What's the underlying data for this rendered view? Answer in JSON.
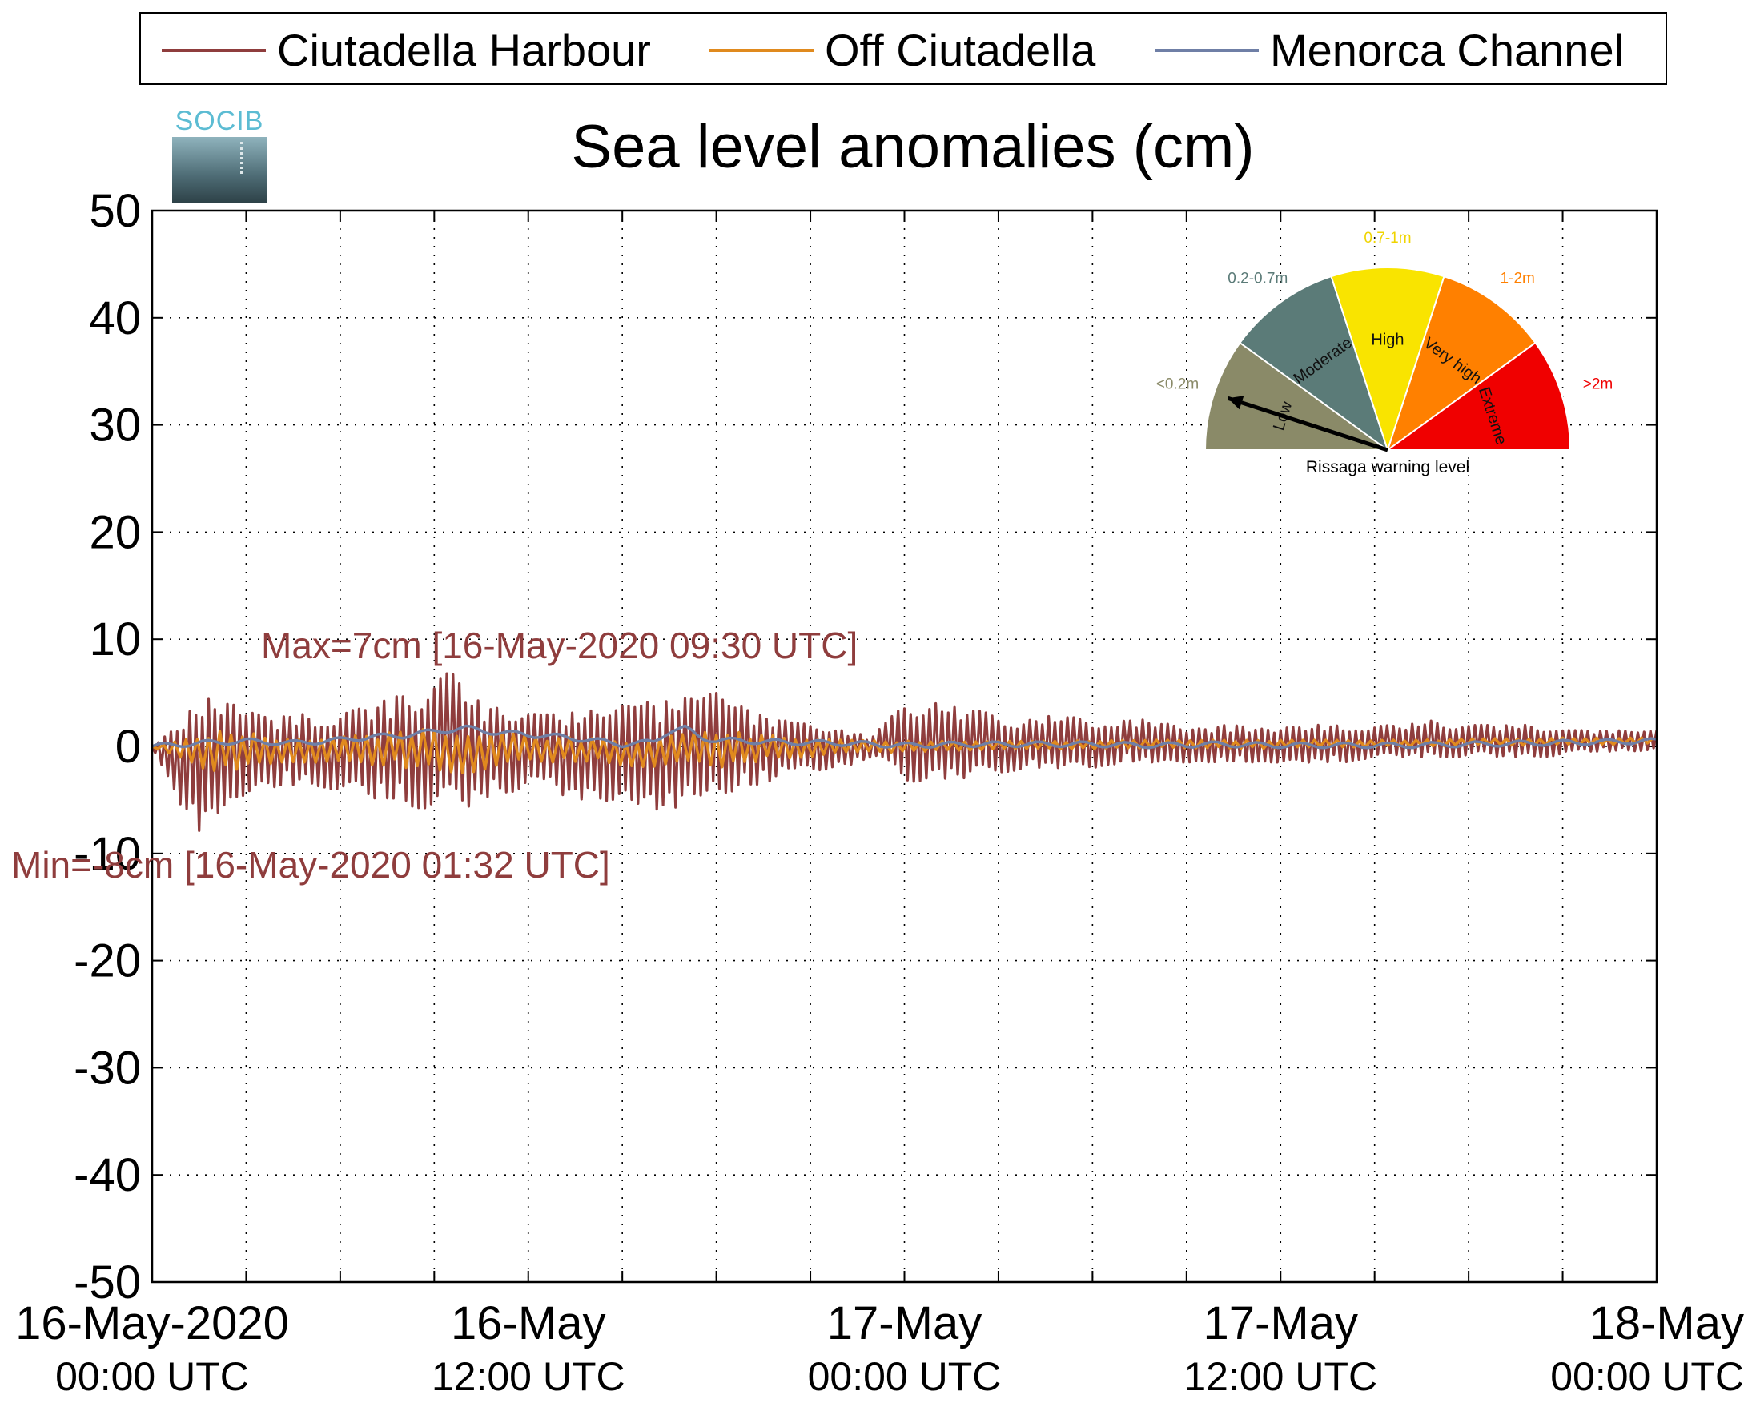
{
  "title": "Sea level anomalies (cm)",
  "logo": {
    "text": "SOCIB"
  },
  "legend": {
    "entries": [
      {
        "label": "Ciutadella Harbour",
        "color": "#8f3d3d"
      },
      {
        "label": "Off Ciutadella",
        "color": "#e08a1e"
      },
      {
        "label": "Menorca Channel",
        "color": "#6f7fa6"
      }
    ]
  },
  "annotations": {
    "max_text": "Max=7cm [16-May-2020 09:30 UTC]",
    "min_text": "Min=-8cm [16-May-2020 01:32 UTC]",
    "color": "#8f3d3d"
  },
  "gauge": {
    "caption": "Rissaga warning level",
    "needle_level": "Low",
    "segments": [
      {
        "name": "Low",
        "range": "<0.2m",
        "color": "#8a8a68",
        "label_color": "#8a8a68"
      },
      {
        "name": "Moderate",
        "range": "0.2-0.7m",
        "color": "#5b7b78",
        "label_color": "#5b7b78"
      },
      {
        "name": "High",
        "range": "0.7-1m",
        "color": "#f9e400",
        "label_color": "#f0d400"
      },
      {
        "name": "Very high",
        "range": "1-2m",
        "color": "#ff8000",
        "label_color": "#ff8000"
      },
      {
        "name": "Extreme",
        "range": ">2m",
        "color": "#f00000",
        "label_color": "#f00000"
      }
    ]
  },
  "chart_data": {
    "type": "line",
    "title": "Sea level anomalies (cm)",
    "x_unit": "hours",
    "xlim": [
      "16-May-2020 00:00 UTC",
      "18-May-2020 00:00 UTC"
    ],
    "x_ticks": [
      {
        "line1": "16-May-2020",
        "line2": "00:00 UTC"
      },
      {
        "line1": "16-May",
        "line2": "12:00 UTC"
      },
      {
        "line1": "17-May",
        "line2": "00:00 UTC"
      },
      {
        "line1": "17-May",
        "line2": "12:00 UTC"
      },
      {
        "line1": "18-May",
        "line2": "00:00 UTC"
      }
    ],
    "ylim": [
      -50,
      50
    ],
    "y_ticks": [
      "50",
      "40",
      "30",
      "20",
      "10",
      "0",
      "-10",
      "-20",
      "-30",
      "-40",
      "-50"
    ],
    "grid": true,
    "legend_position": "top",
    "series": [
      {
        "name": "Ciutadella Harbour",
        "color": "#8f3d3d",
        "envelope": {
          "hours": [
            0,
            1,
            1.53,
            2.5,
            3.5,
            5,
            6.5,
            8,
            9,
            9.5,
            10.5,
            12,
            13,
            14.5,
            15.5,
            17,
            18,
            19,
            20,
            21,
            22,
            23,
            24,
            25,
            26,
            27,
            28,
            29,
            30,
            31,
            32,
            33,
            34,
            35,
            36,
            37,
            38,
            39,
            40,
            41,
            42,
            43,
            44,
            45,
            46,
            47,
            48
          ],
          "upper": [
            0,
            3,
            4,
            5.5,
            3,
            3,
            3.5,
            5,
            6,
            7,
            4,
            3,
            3,
            3.5,
            4,
            4.5,
            5,
            3.5,
            2.5,
            2,
            1.5,
            1,
            4,
            4,
            3.5,
            3,
            2.5,
            3,
            2.5,
            2.5,
            2.5,
            2,
            2,
            2,
            2,
            2,
            2,
            2,
            2,
            2.5,
            2,
            2,
            2,
            1.5,
            1.5,
            1.5,
            1.5
          ],
          "lower": [
            0,
            -6,
            -8,
            -5,
            -4,
            -3.5,
            -4.5,
            -5.5,
            -6,
            -6.5,
            -5,
            -4,
            -4.5,
            -5.5,
            -6.5,
            -5.5,
            -5.5,
            -4,
            -3,
            -2.5,
            -2,
            -1,
            -3.5,
            -3,
            -3,
            -2.5,
            -2,
            -2,
            -2,
            -1.5,
            -1.5,
            -1.5,
            -1.5,
            -1.5,
            -1.5,
            -1.5,
            -1.5,
            -1,
            -1,
            -1,
            -1,
            -1,
            -1,
            -1,
            -0.5,
            -0.5,
            -0.5
          ]
        }
      },
      {
        "name": "Off Ciutadella",
        "color": "#e08a1e",
        "envelope": {
          "hours": [
            0,
            2,
            4,
            6,
            8,
            10,
            12,
            14,
            16,
            18,
            20,
            22,
            24,
            28,
            32,
            36,
            40,
            44,
            48
          ],
          "upper": [
            0,
            1.5,
            1,
            1,
            1.5,
            1.8,
            1,
            0.8,
            0.8,
            1.5,
            1,
            0.6,
            0.5,
            0.5,
            0.6,
            0.6,
            0.6,
            0.8,
            0.8
          ],
          "lower": [
            0,
            -2.5,
            -1.5,
            -1.5,
            -2,
            -2.5,
            -1.5,
            -1.5,
            -2,
            -2,
            -1.2,
            -0.8,
            -0.5,
            -0.3,
            -0.2,
            -0.2,
            0,
            0.1,
            0.2
          ]
        }
      },
      {
        "name": "Menorca Channel",
        "color": "#6f7fa6",
        "points": [
          [
            0,
            0
          ],
          [
            1.5,
            0.3
          ],
          [
            3,
            0.5
          ],
          [
            4.5,
            0.3
          ],
          [
            6,
            0.6
          ],
          [
            7,
            0.9
          ],
          [
            8,
            1.0
          ],
          [
            9,
            1.4
          ],
          [
            10,
            1.7
          ],
          [
            11,
            1.3
          ],
          [
            12,
            1.1
          ],
          [
            13,
            0.9
          ],
          [
            14,
            0.6
          ],
          [
            15,
            0.2
          ],
          [
            16,
            0.4
          ],
          [
            16.5,
            1.5
          ],
          [
            17,
            1.7
          ],
          [
            17.5,
            0.8
          ],
          [
            18,
            0.6
          ],
          [
            19,
            0.5
          ],
          [
            20,
            0.4
          ],
          [
            22,
            0.3
          ],
          [
            24,
            0.1
          ],
          [
            26,
            0.2
          ],
          [
            28,
            0.2
          ],
          [
            30,
            0.2
          ],
          [
            32,
            0.1
          ],
          [
            34,
            0.2
          ],
          [
            36,
            0.1
          ],
          [
            38,
            0.1
          ],
          [
            40,
            0.1
          ],
          [
            42,
            0.2
          ],
          [
            44,
            0.3
          ],
          [
            46,
            0.4
          ],
          [
            48,
            0.5
          ]
        ]
      }
    ]
  }
}
